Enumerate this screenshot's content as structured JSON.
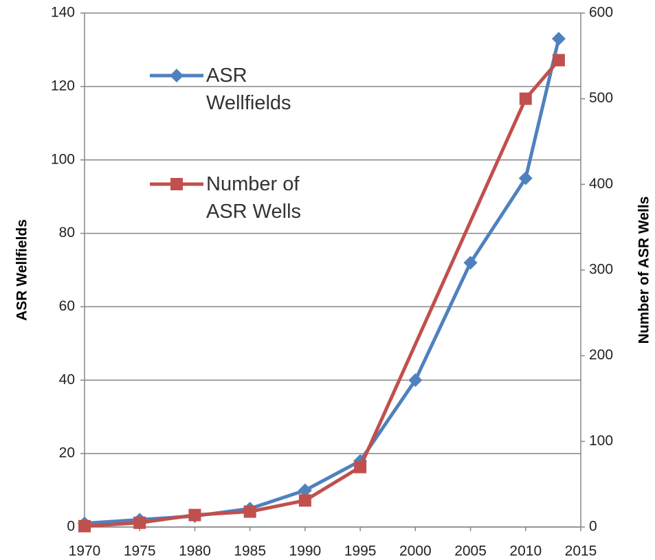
{
  "chart_data": {
    "type": "line",
    "y_label": "ASR Wellfields",
    "y2_label": "Number of ASR Wells",
    "xlim": [
      1970,
      2015
    ],
    "xticks": [
      1970,
      1975,
      1980,
      1985,
      1990,
      1995,
      2000,
      2005,
      2010,
      2015
    ],
    "ylim": [
      0,
      140
    ],
    "yticks": [
      0,
      20,
      40,
      60,
      80,
      100,
      120,
      140
    ],
    "y2lim": [
      0,
      600
    ],
    "y2ticks": [
      0,
      100,
      200,
      300,
      400,
      500,
      600
    ],
    "grid": true,
    "legend": "upper left",
    "series": [
      {
        "name": "ASR Wellfields",
        "color": "#4f81bd",
        "marker": "diamond",
        "axis": "y",
        "x": [
          1970,
          1975,
          1980,
          1985,
          1990,
          1995,
          2000,
          2005,
          2010,
          2013
        ],
        "values": [
          1,
          2,
          3,
          5,
          10,
          18,
          40,
          72,
          95,
          133
        ]
      },
      {
        "name": "Number of ASR Wells",
        "color": "#c0504d",
        "marker": "square",
        "axis": "y2",
        "x": [
          1970,
          1975,
          1980,
          1985,
          1990,
          1995,
          2010,
          2013
        ],
        "values": [
          1,
          5,
          14,
          18,
          31,
          70,
          500,
          545
        ]
      }
    ]
  }
}
